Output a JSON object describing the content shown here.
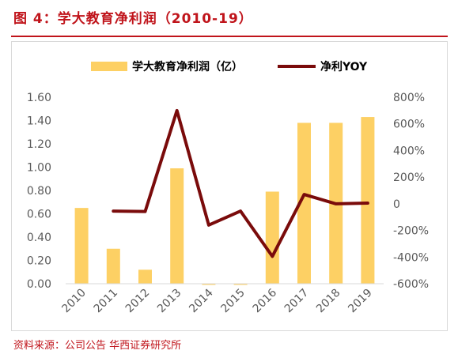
{
  "figure": {
    "title": "图 4：学大教育净利润（2010-19）",
    "source": "资料来源：公司公告 华西证券研究所"
  },
  "chart_data": {
    "type": "bar",
    "categories": [
      "2010",
      "2011",
      "2012",
      "2013",
      "2014",
      "2015",
      "2016",
      "2017",
      "2018",
      "2019"
    ],
    "series": [
      {
        "name": "学大教育净利润（亿）",
        "type": "bar",
        "axis": "left",
        "color": "#fdd064",
        "values": [
          0.65,
          0.3,
          0.12,
          0.99,
          -0.01,
          -0.01,
          0.79,
          1.38,
          1.38,
          1.43
        ]
      },
      {
        "name": "净利YOY",
        "type": "line",
        "axis": "right",
        "color": "#7a0b0b",
        "values": [
          null,
          -55,
          -58,
          700,
          -160,
          -55,
          -395,
          70,
          0,
          5
        ]
      }
    ],
    "y_left": {
      "ylim": [
        0,
        1.6
      ],
      "ticks": [
        "1.60",
        "1.40",
        "1.20",
        "1.00",
        "0.80",
        "0.60",
        "0.40",
        "0.20",
        "0.00"
      ]
    },
    "y_right": {
      "ylim": [
        -600,
        800
      ],
      "ticks": [
        "800%",
        "600%",
        "400%",
        "200%",
        "0",
        "-200%",
        "-400%",
        "-600%"
      ]
    },
    "legend_position": "top",
    "grid": false
  }
}
